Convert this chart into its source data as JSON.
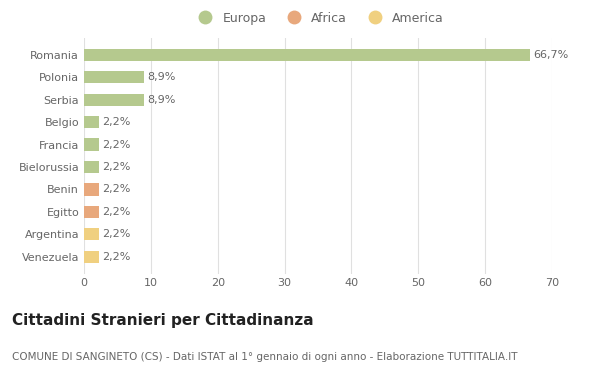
{
  "categories": [
    "Romania",
    "Polonia",
    "Serbia",
    "Belgio",
    "Francia",
    "Bielorussia",
    "Benin",
    "Egitto",
    "Argentina",
    "Venezuela"
  ],
  "values": [
    66.7,
    8.9,
    8.9,
    2.2,
    2.2,
    2.2,
    2.2,
    2.2,
    2.2,
    2.2
  ],
  "labels": [
    "66,7%",
    "8,9%",
    "8,9%",
    "2,2%",
    "2,2%",
    "2,2%",
    "2,2%",
    "2,2%",
    "2,2%",
    "2,2%"
  ],
  "colors": [
    "#b5c98e",
    "#b5c98e",
    "#b5c98e",
    "#b5c98e",
    "#b5c98e",
    "#b5c98e",
    "#e8a87c",
    "#e8a87c",
    "#f0d080",
    "#f0d080"
  ],
  "legend_labels": [
    "Europa",
    "Africa",
    "America"
  ],
  "legend_colors": [
    "#b5c98e",
    "#e8a87c",
    "#f0d080"
  ],
  "title": "Cittadini Stranieri per Cittadinanza",
  "subtitle": "COMUNE DI SANGINETO (CS) - Dati ISTAT al 1° gennaio di ogni anno - Elaborazione TUTTITALIA.IT",
  "xlim": [
    0,
    70
  ],
  "xticks": [
    0,
    10,
    20,
    30,
    40,
    50,
    60,
    70
  ],
  "background_color": "#ffffff",
  "grid_color": "#e0e0e0",
  "bar_height": 0.55,
  "title_fontsize": 11,
  "subtitle_fontsize": 7.5,
  "label_fontsize": 8,
  "tick_fontsize": 8,
  "legend_fontsize": 9
}
